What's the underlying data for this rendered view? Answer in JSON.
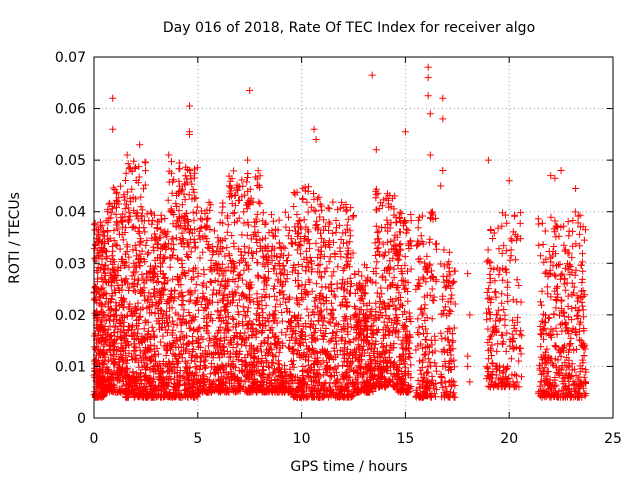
{
  "chart_data": {
    "type": "scatter",
    "title": "Day 016 of 2018, Rate Of TEC Index for receiver algo",
    "xlabel": "GPS time / hours",
    "ylabel": "ROTI / TECUs",
    "xlim": [
      0,
      25
    ],
    "ylim": [
      0,
      0.07
    ],
    "xticks": [
      0,
      5,
      10,
      15,
      20,
      25
    ],
    "yticks": [
      0,
      0.01,
      0.02,
      0.03,
      0.04,
      0.05,
      0.06,
      0.07
    ],
    "xtick_labels": [
      "0",
      "5",
      "10",
      "15",
      "20",
      "25"
    ],
    "ytick_labels": [
      "0",
      "0.01",
      "0.02",
      "0.03",
      "0.04",
      "0.05",
      "0.06",
      "0.07"
    ],
    "grid": true,
    "marker": "plus",
    "color": "#ff0000",
    "gaps": [
      [
        17.5,
        18.9
      ],
      [
        20.6,
        21.4
      ]
    ],
    "clusters": [
      {
        "x": [
          0.0,
          0.5
        ],
        "y": [
          0.004,
          0.038
        ],
        "n": 260
      },
      {
        "x": [
          0.5,
          1.5
        ],
        "y": [
          0.005,
          0.045
        ],
        "n": 330
      },
      {
        "x": [
          1.5,
          2.5
        ],
        "y": [
          0.004,
          0.05
        ],
        "n": 330
      },
      {
        "x": [
          2.5,
          3.5
        ],
        "y": [
          0.004,
          0.04
        ],
        "n": 300
      },
      {
        "x": [
          3.5,
          5.0
        ],
        "y": [
          0.004,
          0.05
        ],
        "n": 420
      },
      {
        "x": [
          5.0,
          6.5
        ],
        "y": [
          0.005,
          0.042
        ],
        "n": 360
      },
      {
        "x": [
          6.5,
          8.0
        ],
        "y": [
          0.005,
          0.048
        ],
        "n": 380
      },
      {
        "x": [
          8.0,
          9.5
        ],
        "y": [
          0.005,
          0.04
        ],
        "n": 340
      },
      {
        "x": [
          9.5,
          11.0
        ],
        "y": [
          0.004,
          0.045
        ],
        "n": 380
      },
      {
        "x": [
          11.0,
          12.5
        ],
        "y": [
          0.004,
          0.042
        ],
        "n": 330
      },
      {
        "x": [
          12.5,
          13.5
        ],
        "y": [
          0.005,
          0.03
        ],
        "n": 260
      },
      {
        "x": [
          13.5,
          14.5
        ],
        "y": [
          0.006,
          0.045
        ],
        "n": 240
      },
      {
        "x": [
          14.5,
          15.3
        ],
        "y": [
          0.005,
          0.04
        ],
        "n": 200
      },
      {
        "x": [
          15.5,
          16.5
        ],
        "y": [
          0.004,
          0.04
        ],
        "n": 180
      },
      {
        "x": [
          16.7,
          17.4
        ],
        "y": [
          0.004,
          0.033
        ],
        "n": 110
      },
      {
        "x": [
          18.9,
          19.6
        ],
        "y": [
          0.006,
          0.037
        ],
        "n": 100
      },
      {
        "x": [
          19.6,
          20.6
        ],
        "y": [
          0.006,
          0.04
        ],
        "n": 110
      },
      {
        "x": [
          21.4,
          23.7
        ],
        "y": [
          0.004,
          0.04
        ],
        "n": 420
      }
    ],
    "outliers": [
      {
        "x": 0.9,
        "y": 0.062
      },
      {
        "x": 0.9,
        "y": 0.056
      },
      {
        "x": 1.6,
        "y": 0.051
      },
      {
        "x": 2.2,
        "y": 0.053
      },
      {
        "x": 3.6,
        "y": 0.051
      },
      {
        "x": 4.6,
        "y": 0.0605
      },
      {
        "x": 4.6,
        "y": 0.0555
      },
      {
        "x": 4.6,
        "y": 0.055
      },
      {
        "x": 7.5,
        "y": 0.0635
      },
      {
        "x": 7.4,
        "y": 0.05
      },
      {
        "x": 10.6,
        "y": 0.056
      },
      {
        "x": 10.7,
        "y": 0.054
      },
      {
        "x": 13.4,
        "y": 0.0665
      },
      {
        "x": 13.6,
        "y": 0.052
      },
      {
        "x": 15.0,
        "y": 0.0555
      },
      {
        "x": 16.1,
        "y": 0.068
      },
      {
        "x": 16.1,
        "y": 0.066
      },
      {
        "x": 16.1,
        "y": 0.0625
      },
      {
        "x": 16.2,
        "y": 0.059
      },
      {
        "x": 16.8,
        "y": 0.062
      },
      {
        "x": 16.8,
        "y": 0.058
      },
      {
        "x": 16.8,
        "y": 0.048
      },
      {
        "x": 16.7,
        "y": 0.045
      },
      {
        "x": 16.2,
        "y": 0.051
      },
      {
        "x": 19.0,
        "y": 0.05
      },
      {
        "x": 20.0,
        "y": 0.046
      },
      {
        "x": 22.0,
        "y": 0.047
      },
      {
        "x": 22.2,
        "y": 0.0465
      },
      {
        "x": 22.5,
        "y": 0.048
      },
      {
        "x": 23.2,
        "y": 0.0445
      },
      {
        "x": 18.0,
        "y": 0.01
      },
      {
        "x": 18.0,
        "y": 0.012
      },
      {
        "x": 18.1,
        "y": 0.02
      },
      {
        "x": 18.0,
        "y": 0.028
      },
      {
        "x": 18.1,
        "y": 0.007
      }
    ]
  }
}
